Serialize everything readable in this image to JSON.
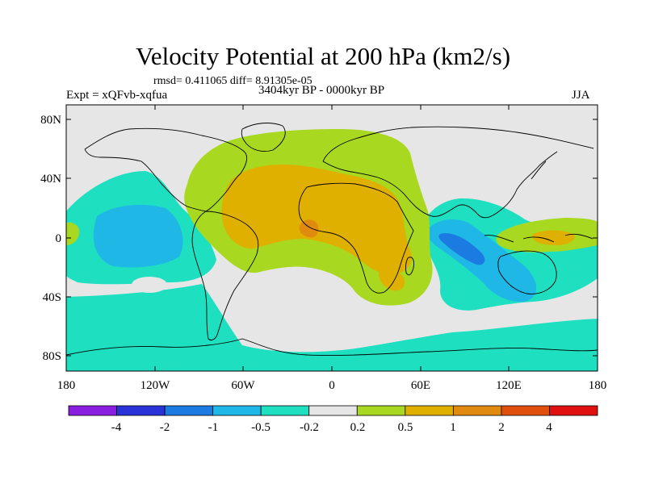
{
  "figure": {
    "title": "Velocity Potential at 200 hPa (km2/s)",
    "stats": "rmsd= 0.411065  diff= 8.91305e-05",
    "experiment": "Expt = xQFvb-xqfua",
    "period": "3404kyr BP - 0000kyr BP",
    "season": "JJA"
  },
  "axes": {
    "lat_ticks": [
      "80N",
      "40N",
      "0",
      "40S",
      "80S"
    ],
    "lon_ticks": [
      "180",
      "120W",
      "60W",
      "0",
      "60E",
      "120E",
      "180"
    ]
  },
  "colorbar": {
    "colors": [
      "#8a1ee0",
      "#2a33d8",
      "#1b7be0",
      "#1fb8e6",
      "#1ee0c0",
      "#e6e6e6",
      "#a8d820",
      "#e0b000",
      "#e08a10",
      "#e0500a",
      "#e01010"
    ],
    "labels": [
      "-4",
      "-2",
      "-1",
      "-0.5",
      "-0.2",
      "0.2",
      "0.5",
      "1",
      "2",
      "4"
    ]
  },
  "colors": {
    "neutral": "#e6e6e6",
    "neg_light": "#1ee0c0",
    "neg_mid": "#1fb8e6",
    "neg_strong": "#1b7be0",
    "pos_light": "#a8d820",
    "pos_mid": "#e0b000",
    "pos_strong": "#e08a10"
  }
}
